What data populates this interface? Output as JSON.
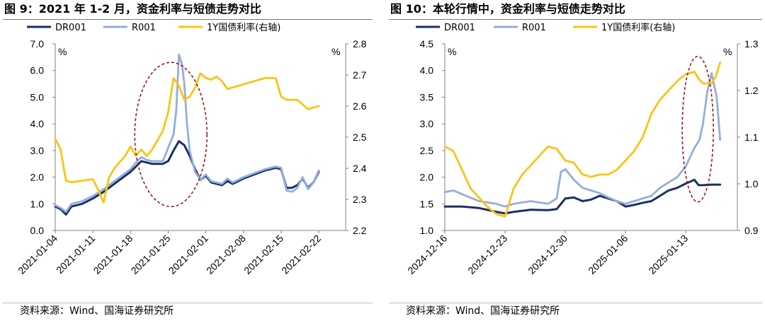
{
  "charts": [
    {
      "figure_label": "图 9",
      "title": "图 9：2021 年 1-2 月，资金利率与短债走势对比",
      "source": "资料来源：Wind、国海证券研究所",
      "y_unit_left": "%",
      "y_unit_right": "%",
      "highlight_color": "#a31515",
      "colors": {
        "dr001": "#1b2f63",
        "r001": "#93aedc",
        "bond": "#fac414"
      }
    },
    {
      "figure_label": "图 10",
      "title": "图 10：本轮行情中，资金利率与短债走势对比",
      "source": "资料来源：Wind、国海证券研究所",
      "y_unit_left": "%",
      "y_unit_right": "%",
      "highlight_color": "#a31515",
      "colors": {
        "dr001": "#1b2f63",
        "r001": "#93aedc",
        "bond": "#fac414"
      }
    }
  ],
  "chart_data": [
    {
      "type": "line",
      "title": "图 9：2021 年 1-2 月，资金利率与短债走势对比",
      "x_ticks": [
        "2021-01-04",
        "2021-01-11",
        "2021-01-18",
        "2021-01-25",
        "2021-02-01",
        "2021-02-08",
        "2021-02-15",
        "2021-02-22"
      ],
      "x_days": [
        0,
        7,
        14,
        21,
        28,
        35,
        42,
        49
      ],
      "xlim": [
        0,
        54
      ],
      "ylim_left": [
        0,
        7
      ],
      "yticks_left": [
        "0.0",
        "1.0",
        "2.0",
        "3.0",
        "4.0",
        "5.0",
        "6.0",
        "7.0"
      ],
      "ylim_right": [
        2.2,
        2.8
      ],
      "yticks_right": [
        "2.2",
        "2.3",
        "2.4",
        "2.5",
        "2.6",
        "2.7",
        "2.8"
      ],
      "legend_position": "top",
      "grid": false,
      "series": [
        {
          "name": "DR001",
          "axis": "left",
          "color": "#1b2f63",
          "points": [
            [
              0,
              0.9
            ],
            [
              1,
              0.8
            ],
            [
              2,
              0.6
            ],
            [
              3,
              0.9
            ],
            [
              5,
              1.0
            ],
            [
              7,
              1.2
            ],
            [
              9,
              1.45
            ],
            [
              10,
              1.6
            ],
            [
              12,
              1.9
            ],
            [
              14,
              2.2
            ],
            [
              15,
              2.4
            ],
            [
              16,
              2.6
            ],
            [
              17,
              2.55
            ],
            [
              18,
              2.5
            ],
            [
              20,
              2.5
            ],
            [
              21,
              2.6
            ],
            [
              22,
              3.0
            ],
            [
              23,
              3.35
            ],
            [
              24,
              3.2
            ],
            [
              25,
              2.8
            ],
            [
              26,
              2.3
            ],
            [
              27,
              1.9
            ],
            [
              28,
              2.05
            ],
            [
              29,
              1.8
            ],
            [
              30,
              1.75
            ],
            [
              31,
              1.7
            ],
            [
              32,
              1.85
            ],
            [
              33,
              1.75
            ],
            [
              35,
              1.95
            ],
            [
              37,
              2.1
            ],
            [
              39,
              2.25
            ],
            [
              41,
              2.35
            ],
            [
              42,
              2.3
            ],
            [
              43,
              1.6
            ],
            [
              44,
              1.6
            ],
            [
              45,
              1.7
            ],
            [
              46,
              1.95
            ],
            [
              47,
              1.6
            ],
            [
              48,
              1.8
            ],
            [
              49,
              2.2
            ]
          ]
        },
        {
          "name": "R001",
          "axis": "left",
          "color": "#93aedc",
          "points": [
            [
              0,
              0.95
            ],
            [
              1,
              0.85
            ],
            [
              2,
              0.7
            ],
            [
              3,
              1.0
            ],
            [
              5,
              1.1
            ],
            [
              7,
              1.3
            ],
            [
              9,
              1.55
            ],
            [
              10,
              1.7
            ],
            [
              12,
              2.0
            ],
            [
              14,
              2.3
            ],
            [
              15,
              2.55
            ],
            [
              16,
              2.75
            ],
            [
              17,
              2.65
            ],
            [
              18,
              2.6
            ],
            [
              20,
              2.6
            ],
            [
              21,
              3.1
            ],
            [
              22,
              3.6
            ],
            [
              22.5,
              4.5
            ],
            [
              23,
              6.6
            ],
            [
              23.6,
              6.2
            ],
            [
              24,
              5.5
            ],
            [
              24.5,
              4.0
            ],
            [
              25,
              3.0
            ],
            [
              26,
              2.2
            ],
            [
              27,
              1.9
            ],
            [
              28,
              2.1
            ],
            [
              29,
              1.85
            ],
            [
              30,
              1.8
            ],
            [
              31,
              1.75
            ],
            [
              32,
              1.95
            ],
            [
              33,
              1.8
            ],
            [
              35,
              2.0
            ],
            [
              37,
              2.15
            ],
            [
              39,
              2.3
            ],
            [
              41,
              2.4
            ],
            [
              42,
              2.35
            ],
            [
              43,
              1.5
            ],
            [
              44,
              1.45
            ],
            [
              45,
              1.6
            ],
            [
              46,
              2.0
            ],
            [
              47,
              1.55
            ],
            [
              48,
              1.8
            ],
            [
              49,
              2.25
            ]
          ]
        },
        {
          "name": "1Y国债利率(右轴)",
          "axis": "right",
          "color": "#fac414",
          "points": [
            [
              0,
              2.495
            ],
            [
              1,
              2.46
            ],
            [
              2,
              2.36
            ],
            [
              3,
              2.355
            ],
            [
              5,
              2.36
            ],
            [
              7,
              2.365
            ],
            [
              8,
              2.33
            ],
            [
              9,
              2.29
            ],
            [
              10,
              2.37
            ],
            [
              11,
              2.4
            ],
            [
              12,
              2.42
            ],
            [
              13,
              2.44
            ],
            [
              14,
              2.47
            ],
            [
              15,
              2.44
            ],
            [
              16,
              2.46
            ],
            [
              17,
              2.44
            ],
            [
              18,
              2.46
            ],
            [
              19,
              2.49
            ],
            [
              20,
              2.52
            ],
            [
              21,
              2.58
            ],
            [
              22,
              2.69
            ],
            [
              23,
              2.665
            ],
            [
              24,
              2.62
            ],
            [
              25,
              2.63
            ],
            [
              26,
              2.66
            ],
            [
              27,
              2.705
            ],
            [
              28,
              2.69
            ],
            [
              29,
              2.685
            ],
            [
              30,
              2.695
            ],
            [
              31,
              2.68
            ],
            [
              32,
              2.655
            ],
            [
              33,
              2.66
            ],
            [
              35,
              2.67
            ],
            [
              37,
              2.68
            ],
            [
              39,
              2.69
            ],
            [
              41,
              2.69
            ],
            [
              42,
              2.63
            ],
            [
              43,
              2.62
            ],
            [
              45,
              2.62
            ],
            [
              46,
              2.605
            ],
            [
              47,
              2.59
            ],
            [
              48,
              2.595
            ],
            [
              49,
              2.6
            ]
          ]
        }
      ]
    },
    {
      "type": "line",
      "title": "图 10：本轮行情中，资金利率与短债走势对比",
      "x_ticks": [
        "2024-12-16",
        "2024-12-23",
        "2024-12-30",
        "2025-01-06",
        "2025-01-13"
      ],
      "x_days": [
        0,
        7,
        14,
        21,
        28
      ],
      "xlim": [
        0,
        34
      ],
      "ylim_left": [
        1.0,
        4.5
      ],
      "yticks_left": [
        "1.0",
        "1.5",
        "2.0",
        "2.5",
        "3.0",
        "3.5",
        "4.0",
        "4.5"
      ],
      "ylim_right": [
        0.9,
        1.3
      ],
      "yticks_right": [
        "0.9",
        "1.0",
        "1.1",
        "1.2",
        "1.3"
      ],
      "legend_position": "top",
      "grid": false,
      "series": [
        {
          "name": "DR001",
          "axis": "left",
          "color": "#1b2f63",
          "points": [
            [
              0,
              1.45
            ],
            [
              2,
              1.45
            ],
            [
              4,
              1.42
            ],
            [
              6,
              1.35
            ],
            [
              7,
              1.32
            ],
            [
              8,
              1.35
            ],
            [
              10,
              1.39
            ],
            [
              12,
              1.38
            ],
            [
              13,
              1.4
            ],
            [
              14,
              1.6
            ],
            [
              15,
              1.62
            ],
            [
              16,
              1.55
            ],
            [
              17,
              1.58
            ],
            [
              18,
              1.65
            ],
            [
              19,
              1.6
            ],
            [
              20,
              1.55
            ],
            [
              21,
              1.45
            ],
            [
              22,
              1.48
            ],
            [
              23,
              1.52
            ],
            [
              24,
              1.55
            ],
            [
              25,
              1.65
            ],
            [
              26,
              1.75
            ],
            [
              27,
              1.8
            ],
            [
              28,
              1.88
            ],
            [
              29,
              1.95
            ],
            [
              29.5,
              1.85
            ],
            [
              30,
              1.85
            ],
            [
              31,
              1.86
            ],
            [
              32,
              1.86
            ]
          ]
        },
        {
          "name": "R001",
          "axis": "left",
          "color": "#93aedc",
          "points": [
            [
              0,
              1.72
            ],
            [
              1,
              1.75
            ],
            [
              2,
              1.68
            ],
            [
              4,
              1.55
            ],
            [
              6,
              1.5
            ],
            [
              7,
              1.45
            ],
            [
              8,
              1.5
            ],
            [
              10,
              1.55
            ],
            [
              12,
              1.5
            ],
            [
              13,
              1.6
            ],
            [
              13.5,
              2.1
            ],
            [
              14,
              2.15
            ],
            [
              15,
              1.95
            ],
            [
              16,
              1.8
            ],
            [
              17,
              1.75
            ],
            [
              18,
              1.7
            ],
            [
              19,
              1.62
            ],
            [
              20,
              1.55
            ],
            [
              21,
              1.5
            ],
            [
              22,
              1.55
            ],
            [
              23,
              1.6
            ],
            [
              24,
              1.65
            ],
            [
              25,
              1.8
            ],
            [
              26,
              1.9
            ],
            [
              27,
              2.0
            ],
            [
              28,
              2.2
            ],
            [
              29,
              2.55
            ],
            [
              29.6,
              2.7
            ],
            [
              30,
              3.0
            ],
            [
              30.5,
              3.6
            ],
            [
              31,
              3.95
            ],
            [
              31.6,
              3.5
            ],
            [
              32,
              2.7
            ]
          ]
        },
        {
          "name": "1Y国债利率(右轴)",
          "axis": "right",
          "color": "#fac414",
          "points": [
            [
              0,
              1.08
            ],
            [
              1,
              1.07
            ],
            [
              2,
              1.03
            ],
            [
              3,
              0.99
            ],
            [
              4,
              0.97
            ],
            [
              5,
              0.95
            ],
            [
              6,
              0.935
            ],
            [
              7,
              0.93
            ],
            [
              8,
              0.99
            ],
            [
              9,
              1.02
            ],
            [
              10,
              1.04
            ],
            [
              11,
              1.06
            ],
            [
              12,
              1.08
            ],
            [
              13,
              1.075
            ],
            [
              14,
              1.05
            ],
            [
              15,
              1.045
            ],
            [
              16,
              1.02
            ],
            [
              17,
              1.015
            ],
            [
              18,
              1.02
            ],
            [
              19,
              1.02
            ],
            [
              20,
              1.03
            ],
            [
              21,
              1.05
            ],
            [
              22,
              1.07
            ],
            [
              23,
              1.1
            ],
            [
              24,
              1.15
            ],
            [
              25,
              1.18
            ],
            [
              26,
              1.2
            ],
            [
              27,
              1.22
            ],
            [
              28,
              1.235
            ],
            [
              29,
              1.24
            ],
            [
              29.5,
              1.225
            ],
            [
              30,
              1.215
            ],
            [
              31,
              1.215
            ],
            [
              31.5,
              1.23
            ],
            [
              32,
              1.26
            ]
          ]
        }
      ]
    }
  ]
}
